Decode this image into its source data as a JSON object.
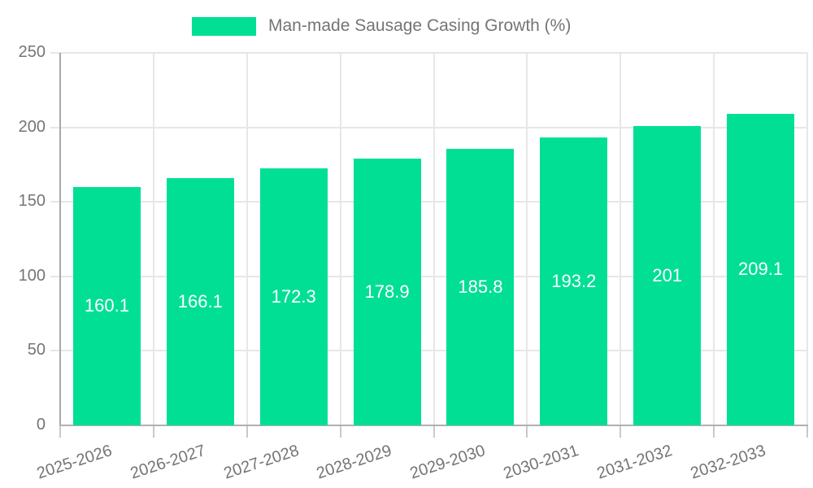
{
  "legend": {
    "label": "Man-made Sausage Casing Growth (%)"
  },
  "colors": {
    "bar": "#00DF94",
    "axis_y": "#a8a8a8",
    "axis_x": "#b0b0b0",
    "gridline": "#e7e7e7",
    "tick": "#c9c9c9",
    "text_muted": "#757575",
    "value_label": "#ffffff",
    "background": "#ffffff"
  },
  "chart_data": {
    "type": "bar",
    "title": "Man-made Sausage Casing Growth (%)",
    "categories": [
      "2025-2026",
      "2026-2027",
      "2027-2028",
      "2028-2029",
      "2029-2030",
      "2030-2031",
      "2031-2032",
      "2032-2033"
    ],
    "values": [
      160.1,
      166.1,
      172.3,
      178.9,
      185.8,
      193.2,
      201,
      209.1
    ],
    "value_labels": [
      "160.1",
      "166.1",
      "172.3",
      "178.9",
      "185.8",
      "193.2",
      "201",
      "209.1"
    ],
    "xlabel": "",
    "ylabel": "",
    "ylim": [
      0,
      250
    ],
    "yticks": [
      0,
      50,
      100,
      150,
      200,
      250
    ],
    "grid": "on",
    "legend_position": "top",
    "bar_color": "#00DF94",
    "value_label_position": "middle-of-bar",
    "x_label_rotation_deg": -18
  }
}
